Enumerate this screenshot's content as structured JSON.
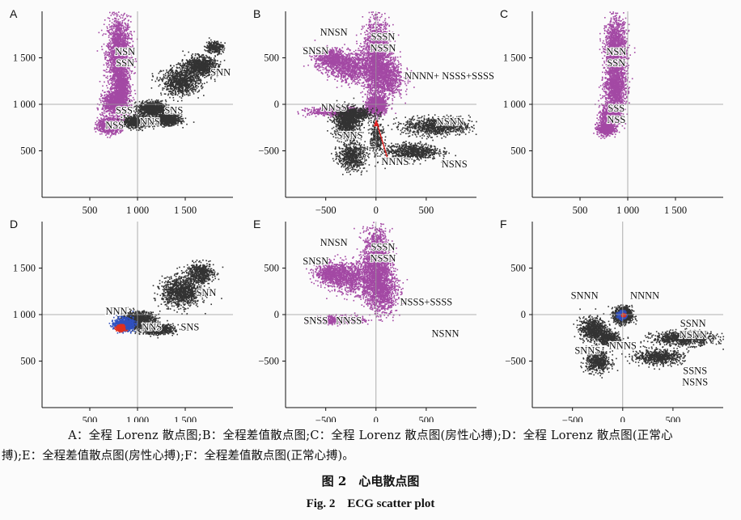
{
  "chart_data": [
    {
      "type": "scatter",
      "panel_label": "A",
      "xlim": [
        0,
        2000
      ],
      "ylim": [
        0,
        2000
      ],
      "xticks": [
        500,
        1000,
        1500
      ],
      "yticks": [
        500,
        1000,
        1500
      ],
      "tick_labels": {
        "x": [
          "500",
          "1 000",
          "1 500"
        ],
        "y": [
          "500",
          "1 000",
          "1 500"
        ]
      },
      "ref_x": 1000,
      "ref_y": 1000,
      "series": [
        {
          "color": "#a349a4",
          "clusters": [
            [
              800,
              1550,
              110,
              360,
              2
            ],
            [
              820,
              1200,
              70,
              220,
              1
            ],
            [
              760,
              1020,
              120,
              110,
              1
            ],
            [
              700,
              780,
              110,
              70,
              1
            ]
          ]
        },
        {
          "color": "#333333",
          "clusters": [
            [
              1450,
              1250,
              180,
              130,
              1
            ],
            [
              1650,
              1420,
              140,
              90,
              1
            ],
            [
              1150,
              960,
              130,
              70,
              1
            ],
            [
              1000,
              820,
              130,
              55,
              1
            ],
            [
              1300,
              840,
              120,
              50,
              1
            ],
            [
              1800,
              1620,
              80,
              60,
              0.3
            ]
          ]
        }
      ],
      "annotations": [
        {
          "text": "NSN",
          "x": 870,
          "y": 1530
        },
        {
          "text": "SSN",
          "x": 870,
          "y": 1410
        },
        {
          "text": "SNN",
          "x": 1870,
          "y": 1310
        },
        {
          "text": "SSS",
          "x": 860,
          "y": 900
        },
        {
          "text": "SNS",
          "x": 1380,
          "y": 900
        },
        {
          "text": "NNS",
          "x": 1130,
          "y": 780
        },
        {
          "text": "NSS",
          "x": 760,
          "y": 740
        }
      ]
    },
    {
      "type": "scatter",
      "panel_label": "B",
      "xlim": [
        -900,
        1000
      ],
      "ylim": [
        -1000,
        1000
      ],
      "xticks": [
        -500,
        0,
        500
      ],
      "yticks": [
        -500,
        0,
        500
      ],
      "tick_labels": {
        "x": [
          "−500",
          "0",
          "500"
        ],
        "y": [
          "−500",
          "0",
          "500"
        ]
      },
      "ref_x": 0,
      "ref_y": 0,
      "series": [
        {
          "color": "#a349a4",
          "clusters": [
            [
              0,
              500,
              120,
              380,
              2
            ],
            [
              -250,
              400,
              200,
              140,
              1
            ],
            [
              -450,
              500,
              150,
              100,
              0.7
            ],
            [
              100,
              300,
              150,
              200,
              1
            ],
            [
              -400,
              -70,
              250,
              40,
              0.7
            ],
            [
              0,
              0,
              80,
              80,
              1.2
            ]
          ]
        },
        {
          "color": "#333333",
          "clusters": [
            [
              -300,
              -200,
              110,
              150,
              1
            ],
            [
              -250,
              -550,
              120,
              130,
              0.7
            ],
            [
              600,
              -230,
              300,
              90,
              1
            ],
            [
              350,
              -500,
              240,
              80,
              0.8
            ],
            [
              -200,
              -100,
              150,
              60,
              0.6
            ],
            [
              0,
              -350,
              60,
              200,
              0.3
            ]
          ]
        }
      ],
      "annotations": [
        {
          "text": "NNSN",
          "x": -420,
          "y": 740
        },
        {
          "text": "SSSN",
          "x": 70,
          "y": 690
        },
        {
          "text": "SNSN",
          "x": -600,
          "y": 540
        },
        {
          "text": "NSSN",
          "x": 70,
          "y": 570
        },
        {
          "text": "NNNN+ NSSS+SSSS",
          "x": 730,
          "y": 270
        },
        {
          "text": "NNSS",
          "x": -420,
          "y": -70
        },
        {
          "text": "NSNN",
          "x": 740,
          "y": -220
        },
        {
          "text": "SNNS",
          "x": -260,
          "y": -370
        },
        {
          "text": "NNNS",
          "x": 190,
          "y": -650
        },
        {
          "text": "NSNS",
          "x": 780,
          "y": -680
        }
      ],
      "arrow": {
        "from": [
          120,
          -600
        ],
        "to": [
          0,
          -170
        ],
        "color": "#e02020"
      }
    },
    {
      "type": "scatter",
      "panel_label": "C",
      "xlim": [
        0,
        2000
      ],
      "ylim": [
        0,
        2000
      ],
      "xticks": [
        500,
        1000,
        1500
      ],
      "yticks": [
        500,
        1000,
        1500
      ],
      "tick_labels": {
        "x": [
          "500",
          "1 000",
          "1 500"
        ],
        "y": [
          "500",
          "1 000",
          "1 500"
        ]
      },
      "ref_x": 1000,
      "ref_y": 1000,
      "series": [
        {
          "color": "#a349a4",
          "clusters": [
            [
              870,
              1550,
              100,
              330,
              2
            ],
            [
              860,
              1150,
              100,
              200,
              1
            ],
            [
              820,
              880,
              90,
              110,
              1
            ],
            [
              760,
              740,
              80,
              60,
              0.6
            ]
          ]
        }
      ],
      "annotations": [
        {
          "text": "NSN",
          "x": 880,
          "y": 1530
        },
        {
          "text": "SSN",
          "x": 880,
          "y": 1410
        },
        {
          "text": "SSS",
          "x": 880,
          "y": 920
        },
        {
          "text": "NSS",
          "x": 880,
          "y": 800
        }
      ]
    },
    {
      "type": "scatter",
      "panel_label": "D",
      "xlim": [
        0,
        2000
      ],
      "ylim": [
        0,
        2000
      ],
      "xticks": [
        500,
        1000,
        1500
      ],
      "yticks": [
        500,
        1000,
        1500
      ],
      "tick_labels": {
        "x": [
          "500",
          "1 000",
          "1 500"
        ],
        "y": [
          "500",
          "1 000",
          "1 500"
        ]
      },
      "ref_x": 1000,
      "ref_y": 1000,
      "series": [
        {
          "color": "#333333",
          "clusters": [
            [
              1450,
              1250,
              180,
              140,
              1.2
            ],
            [
              1000,
              950,
              160,
              80,
              1
            ],
            [
              1200,
              850,
              160,
              50,
              0.8
            ],
            [
              1650,
              1450,
              130,
              100,
              0.6
            ]
          ]
        },
        {
          "color": "#3050c0",
          "clusters": [
            [
              850,
              900,
              90,
              60,
              0.8
            ]
          ]
        },
        {
          "color": "#e03020",
          "clusters": [
            [
              820,
              860,
              40,
              30,
              0.4
            ]
          ]
        }
      ],
      "annotations": [
        {
          "text": "SNN",
          "x": 1720,
          "y": 1200
        },
        {
          "text": "NNN",
          "x": 780,
          "y": 1000
        },
        {
          "text": "NNS",
          "x": 1150,
          "y": 830
        },
        {
          "text": "SNS",
          "x": 1550,
          "y": 830
        }
      ]
    },
    {
      "type": "scatter",
      "panel_label": "E",
      "xlim": [
        -900,
        1000
      ],
      "ylim": [
        -1000,
        1000
      ],
      "xticks": [
        -500,
        0,
        500
      ],
      "yticks": [
        -500,
        0,
        500
      ],
      "tick_labels": {
        "x": [
          "−500",
          "0",
          "500"
        ],
        "y": [
          "−500",
          "0",
          "500"
        ]
      },
      "ref_x": 0,
      "ref_y": 0,
      "series": [
        {
          "color": "#a349a4",
          "clusters": [
            [
              0,
              550,
              120,
              330,
              2
            ],
            [
              -250,
              400,
              200,
              150,
              1
            ],
            [
              -450,
              450,
              150,
              100,
              0.7
            ],
            [
              -350,
              -50,
              200,
              40,
              0.6
            ],
            [
              50,
              250,
              140,
              200,
              1
            ]
          ]
        }
      ],
      "annotations": [
        {
          "text": "NNSN",
          "x": -420,
          "y": 740
        },
        {
          "text": "SSSN",
          "x": 70,
          "y": 690
        },
        {
          "text": "SNSN",
          "x": -600,
          "y": 540
        },
        {
          "text": "NSSN",
          "x": 70,
          "y": 570
        },
        {
          "text": "NSSS+SSSS",
          "x": 500,
          "y": 100
        },
        {
          "text": "SNSS",
          "x": -600,
          "y": -100
        },
        {
          "text": "NNSS",
          "x": -270,
          "y": -100
        },
        {
          "text": "NSNN",
          "x": 690,
          "y": -240
        }
      ]
    },
    {
      "type": "scatter",
      "panel_label": "F",
      "xlim": [
        -900,
        1000
      ],
      "ylim": [
        -1000,
        1000
      ],
      "xticks": [
        -500,
        0,
        500
      ],
      "yticks": [
        -500,
        0,
        500
      ],
      "tick_labels": {
        "x": [
          "−500",
          "0",
          "500"
        ],
        "y": [
          "−500",
          "0",
          "500"
        ]
      },
      "ref_x": 0,
      "ref_y": 0,
      "series": [
        {
          "color": "#333333",
          "clusters": [
            [
              0,
              0,
              80,
              80,
              1
            ],
            [
              -300,
              -150,
              120,
              110,
              0.8
            ],
            [
              -250,
              -500,
              110,
              100,
              0.6
            ],
            [
              600,
              -250,
              280,
              70,
              0.9
            ],
            [
              350,
              -450,
              220,
              70,
              0.7
            ],
            [
              -150,
              -250,
              100,
              60,
              0.5
            ]
          ]
        },
        {
          "color": "#3050c0",
          "clusters": [
            [
              -10,
              0,
              35,
              35,
              0.4
            ]
          ]
        },
        {
          "color": "#e03020",
          "clusters": [
            [
              0,
              0,
              15,
              15,
              0.2
            ]
          ]
        }
      ],
      "annotations": [
        {
          "text": "SNNN",
          "x": -380,
          "y": 170
        },
        {
          "text": "NNNN",
          "x": 220,
          "y": 170
        },
        {
          "text": "SSNN",
          "x": 700,
          "y": -130
        },
        {
          "text": "NSNN",
          "x": 700,
          "y": -250
        },
        {
          "text": "SNNS",
          "x": -350,
          "y": -420
        },
        {
          "text": "NNNS",
          "x": 0,
          "y": -370
        },
        {
          "text": "SSNS",
          "x": 720,
          "y": -640
        },
        {
          "text": "NSNS",
          "x": 720,
          "y": -760
        }
      ]
    }
  ],
  "caption": {
    "line1": "A：全程 Lorenz 散点图;B：全程差值散点图;C：全程 Lorenz 散点图(房性心搏);D：全程 Lorenz 散点图(正常心",
    "line2": "搏);E：全程差值散点图(房性心搏);F：全程差值散点图(正常心搏)。",
    "title_cn": "图 2　心电散点图",
    "title_en": "Fig. 2　ECG scatter plot"
  }
}
